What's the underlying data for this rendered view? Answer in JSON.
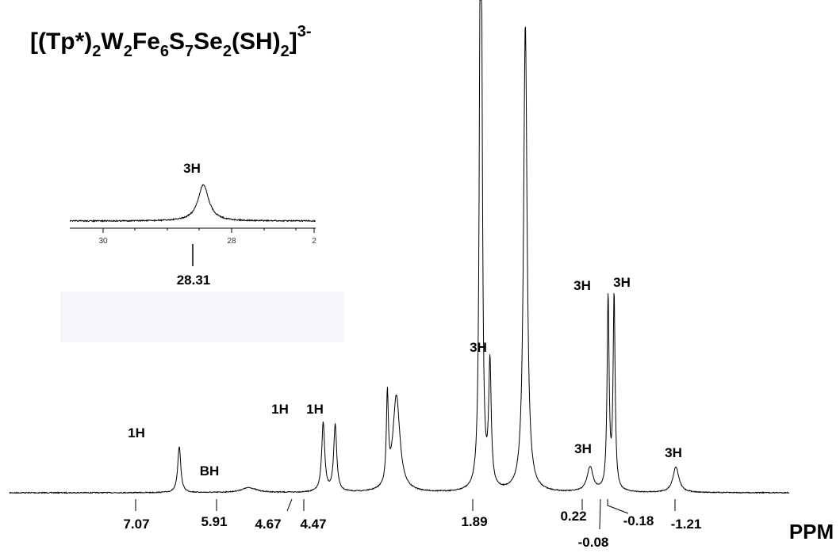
{
  "chart_data": {
    "type": "line",
    "title": "[(Tp*)2W2Fe6S7Se2(SH)2]3-",
    "title_parts": {
      "base": "[(Tp*)",
      "sub1": "2",
      "w": "W",
      "sub2": "2",
      "fe": "Fe",
      "sub3": "6",
      "s": "S",
      "sub4": "7",
      "se": "Se",
      "sub5": "2",
      "sh": "(SH)",
      "sub6": "2",
      "close": "]",
      "sup": "3-"
    },
    "xlabel": "PPM",
    "ylabel": "",
    "x_reversed": true,
    "grid": false,
    "series": [
      {
        "peaks": [
          {
            "shift": 7.07,
            "height": 0.094,
            "width": 0.03
          },
          {
            "shift": 5.91,
            "height": 0.01,
            "width": 0.15
          },
          {
            "shift": 4.67,
            "height": 0.14,
            "width": 0.03
          },
          {
            "shift": 4.47,
            "height": 0.136,
            "width": 0.03
          },
          {
            "shift": 3.45,
            "height": 0.195,
            "width": 0.07
          },
          {
            "shift": 3.6,
            "height": 0.18,
            "width": 0.02
          },
          {
            "shift": 2.05,
            "height": 1.0,
            "width": 0.02
          },
          {
            "shift": 2.03,
            "height": 0.62,
            "width": 0.02
          },
          {
            "shift": 1.89,
            "height": 0.25,
            "width": 0.025
          },
          {
            "shift": 1.3,
            "height": 0.95,
            "width": 0.035
          },
          {
            "shift": 0.22,
            "height": 0.05,
            "width": 0.06
          },
          {
            "shift": -0.08,
            "height": 0.39,
            "width": 0.02
          },
          {
            "shift": -0.18,
            "height": 0.394,
            "width": 0.02
          },
          {
            "shift": -1.21,
            "height": 0.052,
            "width": 0.06
          }
        ]
      }
    ],
    "peak_labels": [
      {
        "shift": 7.07,
        "count": "1H",
        "value": "7.07"
      },
      {
        "shift": 5.91,
        "count": "BH",
        "value": "5.91"
      },
      {
        "shift": 4.67,
        "count": "1H",
        "value": "4.67"
      },
      {
        "shift": 4.47,
        "count": "1H",
        "value": "4.47"
      },
      {
        "shift": 1.89,
        "count": "3H",
        "value": "1.89"
      },
      {
        "shift": 0.22,
        "count": "3H",
        "value": "0.22"
      },
      {
        "shift": -0.08,
        "count": "3H",
        "value": "-0.08"
      },
      {
        "shift": -0.18,
        "count": "3H",
        "value": "-0.18"
      },
      {
        "shift": -1.21,
        "count": "3H",
        "value": "-1.21"
      }
    ],
    "inset": {
      "peak_shift": 28.31,
      "count": "3H",
      "value": "28.31",
      "tick_labels": [
        "30",
        "28",
        "2"
      ]
    }
  }
}
